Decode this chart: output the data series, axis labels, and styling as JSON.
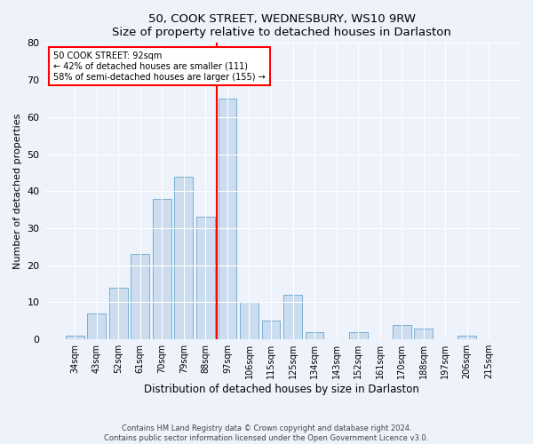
{
  "title": "50, COOK STREET, WEDNESBURY, WS10 9RW",
  "subtitle": "Size of property relative to detached houses in Darlaston",
  "xlabel": "Distribution of detached houses by size in Darlaston",
  "ylabel": "Number of detached properties",
  "categories": [
    "34sqm",
    "43sqm",
    "52sqm",
    "61sqm",
    "70sqm",
    "79sqm",
    "88sqm",
    "97sqm",
    "106sqm",
    "115sqm",
    "125sqm",
    "134sqm",
    "143sqm",
    "152sqm",
    "161sqm",
    "170sqm",
    "188sqm",
    "197sqm",
    "206sqm",
    "215sqm"
  ],
  "values": [
    1,
    7,
    14,
    23,
    38,
    44,
    33,
    65,
    10,
    5,
    12,
    2,
    0,
    2,
    0,
    4,
    3,
    0,
    1,
    0
  ],
  "bar_color": "#ccddf0",
  "bar_edge_color": "#7aafd4",
  "vline_x": 6.5,
  "vline_color": "red",
  "annotation_text": "50 COOK STREET: 92sqm\n← 42% of detached houses are smaller (111)\n58% of semi-detached houses are larger (155) →",
  "annotation_box_color": "white",
  "annotation_box_edge": "red",
  "ylim": [
    0,
    80
  ],
  "yticks": [
    0,
    10,
    20,
    30,
    40,
    50,
    60,
    70,
    80
  ],
  "footer1": "Contains HM Land Registry data © Crown copyright and database right 2024.",
  "footer2": "Contains public sector information licensed under the Open Government Licence v3.0.",
  "bg_color": "#eef2fa",
  "plot_bg_color": "#eef2fa"
}
